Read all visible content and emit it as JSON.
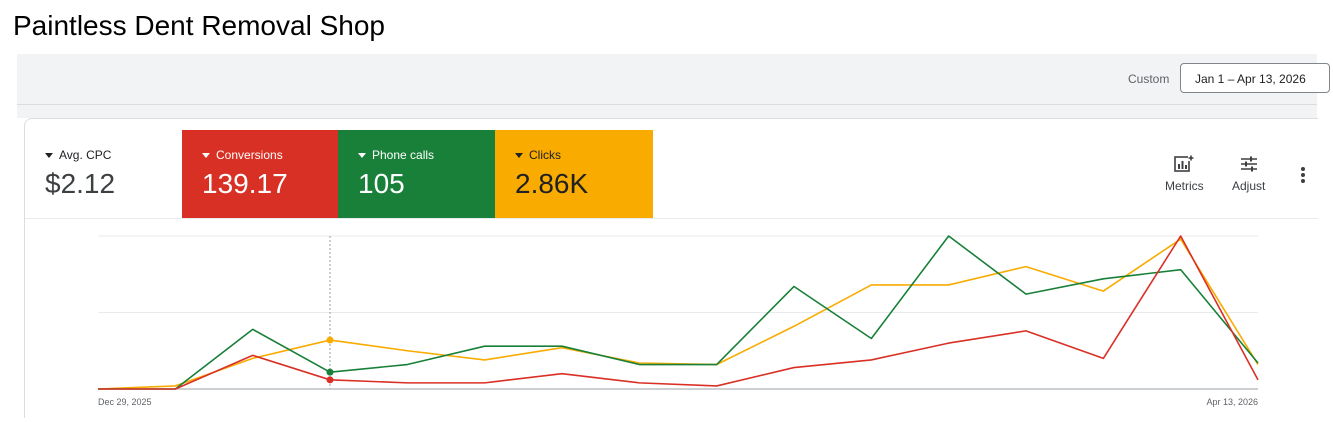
{
  "page": {
    "title": "Paintless Dent Removal Shop"
  },
  "toolbar": {
    "custom_label": "Custom",
    "date_range": "Jan 1 – Apr 13, 2026"
  },
  "metrics": [
    {
      "label": "Avg. CPC",
      "value": "$2.12",
      "color": "#ffffff"
    },
    {
      "label": "Conversions",
      "value": "139.17",
      "color": "#d93025"
    },
    {
      "label": "Phone calls",
      "value": "105",
      "color": "#188038"
    },
    {
      "label": "Clicks",
      "value": "2.86K",
      "color": "#f9ab00"
    }
  ],
  "tools": {
    "metrics_label": "Metrics",
    "adjust_label": "Adjust",
    "metrics_icon": "bar-chart-add-icon",
    "adjust_icon": "tune-icon",
    "more_icon": "more-vert-icon"
  },
  "chart_data": {
    "type": "line",
    "x_start_label": "Dec 29, 2025",
    "x_end_label": "Apr 13, 2026",
    "x": [
      "Dec 29, 2025",
      "Jan 5, 2026",
      "Jan 12, 2026",
      "Jan 19, 2026",
      "Jan 26, 2026",
      "Feb 2, 2026",
      "Feb 9, 2026",
      "Feb 16, 2026",
      "Feb 23, 2026",
      "Mar 2, 2026",
      "Mar 9, 2026",
      "Mar 16, 2026",
      "Mar 23, 2026",
      "Mar 30, 2026",
      "Apr 6, 2026",
      "Apr 13, 2026"
    ],
    "ylim": [
      0,
      1
    ],
    "grid": true,
    "highlight_index": 3,
    "series": [
      {
        "color": "#f9ab00",
        "values": [
          0.0,
          0.02,
          0.2,
          0.32,
          0.25,
          0.19,
          0.27,
          0.17,
          0.16,
          0.41,
          0.68,
          0.68,
          0.8,
          0.64,
          0.98,
          0.16
        ]
      },
      {
        "color": "#188038",
        "values": [
          0.0,
          0.0,
          0.39,
          0.11,
          0.16,
          0.28,
          0.28,
          0.16,
          0.16,
          0.67,
          0.33,
          1.0,
          0.62,
          0.72,
          0.78,
          0.17
        ]
      },
      {
        "color": "#d93025",
        "values": [
          0.0,
          0.0,
          0.22,
          0.06,
          0.04,
          0.04,
          0.1,
          0.04,
          0.02,
          0.14,
          0.19,
          0.3,
          0.38,
          0.2,
          1.0,
          0.06
        ]
      }
    ]
  }
}
